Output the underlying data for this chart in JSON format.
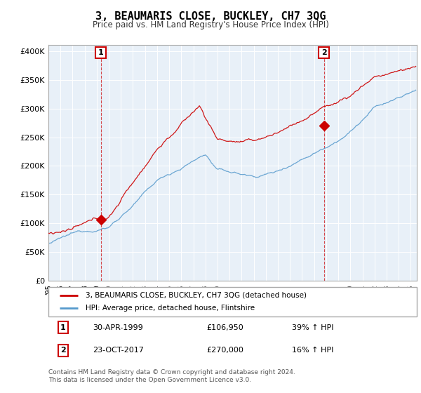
{
  "title": "3, BEAUMARIS CLOSE, BUCKLEY, CH7 3QG",
  "subtitle": "Price paid vs. HM Land Registry's House Price Index (HPI)",
  "legend_line1": "3, BEAUMARIS CLOSE, BUCKLEY, CH7 3QG (detached house)",
  "legend_line2": "HPI: Average price, detached house, Flintshire",
  "annotation1_date": "30-APR-1999",
  "annotation1_price": "£106,950",
  "annotation1_hpi": "39% ↑ HPI",
  "annotation2_date": "23-OCT-2017",
  "annotation2_price": "£270,000",
  "annotation2_hpi": "16% ↑ HPI",
  "footnote": "Contains HM Land Registry data © Crown copyright and database right 2024.\nThis data is licensed under the Open Government Licence v3.0.",
  "red_color": "#cc0000",
  "blue_color": "#5599cc",
  "chart_bg": "#e8f0f8",
  "grid_color": "#ffffff",
  "outer_bg": "#ffffff",
  "ylim_max": 410000,
  "yticks": [
    0,
    50000,
    100000,
    150000,
    200000,
    250000,
    300000,
    350000,
    400000
  ],
  "sale1_year": 1999.33,
  "sale1_price": 106950,
  "sale2_year": 2017.81,
  "sale2_price": 270000
}
